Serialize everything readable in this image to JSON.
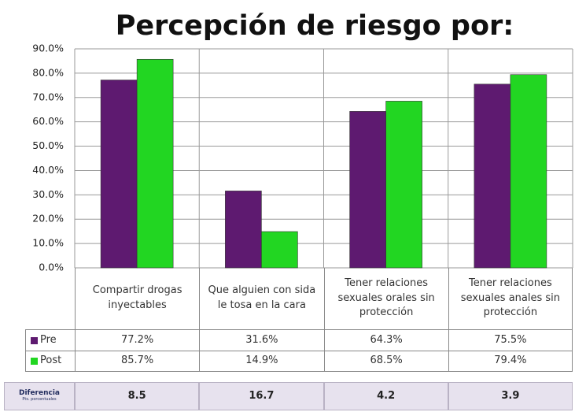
{
  "chart_data": {
    "type": "bar",
    "title": "Percepción de riesgo por:",
    "categories": [
      "Compartir drogas inyectables",
      "Que alguien con sida le tosa en la cara",
      "Tener relaciones sexuales orales sin protección",
      "Tener relaciones sexuales anales sin protección"
    ],
    "series": [
      {
        "name": "Pre",
        "color": "#5e1a70",
        "values": [
          77.2,
          31.6,
          64.3,
          75.5
        ],
        "value_labels": [
          "77.2%",
          "31.6%",
          "64.3%",
          "75.5%"
        ]
      },
      {
        "name": "Post",
        "color": "#22d622",
        "values": [
          85.7,
          14.9,
          68.5,
          79.4
        ],
        "value_labels": [
          "85.7%",
          "14.9%",
          "68.5%",
          "79.4%"
        ]
      }
    ],
    "ylim": [
      0,
      90
    ],
    "yticks": [
      {
        "value": 0,
        "label": "0.0%"
      },
      {
        "value": 10,
        "label": "10.0%"
      },
      {
        "value": 20,
        "label": "20.0%"
      },
      {
        "value": 30,
        "label": "30.0%"
      },
      {
        "value": 40,
        "label": "40.0%"
      },
      {
        "value": 50,
        "label": "50.0%"
      },
      {
        "value": 60,
        "label": "60.0%"
      },
      {
        "value": 70,
        "label": "70.0%"
      },
      {
        "value": 80,
        "label": "80.0%"
      },
      {
        "value": 90,
        "label": "90.0%"
      }
    ],
    "grid": true,
    "difference": {
      "label": "Diferencia",
      "sublabel": "Pts. porcentuales",
      "values": [
        8.5,
        16.7,
        4.2,
        3.9
      ]
    }
  }
}
